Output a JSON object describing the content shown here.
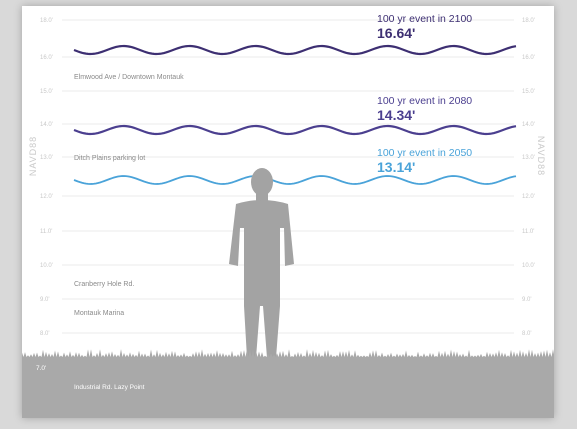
{
  "axis": {
    "left_label": "NAVD88",
    "right_label": "NAVD88",
    "tick_labels": [
      "18.0'",
      "16.0'",
      "15.0'",
      "14.0'",
      "13.0'",
      "12.0'",
      "11.0'",
      "10.0'",
      "9.0'",
      "8.0'",
      "7.0'"
    ]
  },
  "locations": [
    "Elmwood Ave / Downtown Montauk",
    "Ditch Plains parking lot",
    "Cranberry Hole Rd.",
    "Montauk Marina",
    "Industrial Rd. Lazy Point"
  ],
  "events": [
    {
      "label": "100 yr event in 2100",
      "value": "16.64'",
      "level_ft": 16.64,
      "color": "#3d2f72"
    },
    {
      "label": "100 yr event in 2080",
      "value": "14.34'",
      "level_ft": 14.34,
      "color": "#4b3f8f"
    },
    {
      "label": "100 yr event in 2050",
      "value": "13.14'",
      "level_ft": 13.14,
      "color": "#4aa3d9"
    }
  ],
  "colors": {
    "ground": "#a9a9a9",
    "person": "#a3a3a3",
    "grid": "#e4e4e4"
  },
  "icons": {
    "person": "person-silhouette-icon",
    "ground": "grass-ground-icon"
  }
}
